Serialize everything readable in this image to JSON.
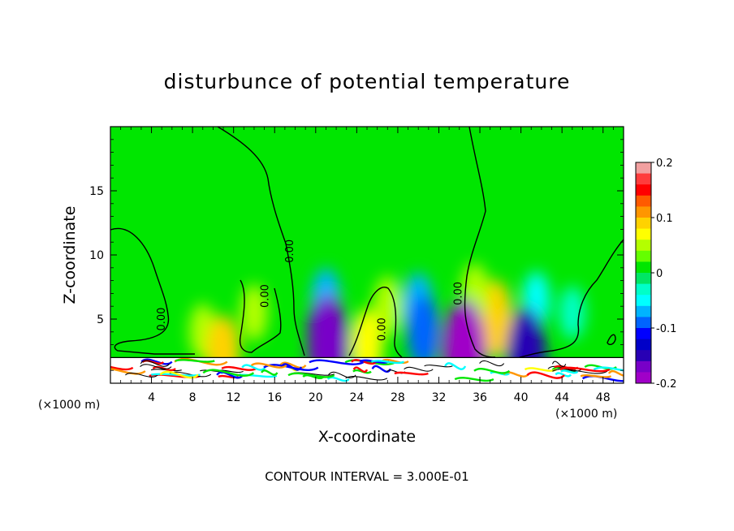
{
  "chart_data": {
    "type": "heatmap",
    "title": "disturbunce of potential temperature",
    "xlabel": "X-coordinate",
    "ylabel": "Z-coordinate",
    "x_unit_left": "(×1000 m)",
    "x_unit_right": "(×1000 m)",
    "xlim": [
      0,
      50
    ],
    "ylim": [
      0,
      20
    ],
    "x_ticks": [
      4,
      8,
      12,
      16,
      20,
      24,
      28,
      32,
      36,
      40,
      44,
      48
    ],
    "y_ticks": [
      5,
      10,
      15
    ],
    "colorbar": {
      "min": -0.2,
      "max": 0.2,
      "labels": [
        "0.2",
        "0.1",
        "0",
        "-0.1",
        "-0.2"
      ],
      "label_values": [
        0.2,
        0.1,
        0,
        -0.1,
        -0.2
      ],
      "colors": [
        "#f2a0a0",
        "#ff3c3c",
        "#ff0000",
        "#ff5a00",
        "#ff9600",
        "#ffd200",
        "#ffff00",
        "#b4ff00",
        "#64ff00",
        "#00e600",
        "#00e664",
        "#00ffc8",
        "#00ffff",
        "#00b4ff",
        "#0064ff",
        "#0000ff",
        "#0000c8",
        "#2800b4",
        "#7800c8",
        "#a000c8"
      ]
    },
    "background_color": "#00e600",
    "contour_labels": [
      {
        "text": "0.00",
        "x": 5.3,
        "z": 5.0
      },
      {
        "text": "0.00",
        "x": 15.4,
        "z": 6.8
      },
      {
        "text": "0.00",
        "x": 17.8,
        "z": 10.3
      },
      {
        "text": "0.00",
        "x": 26.8,
        "z": 4.2
      },
      {
        "text": "0.00",
        "x": 34.2,
        "z": 7.0
      }
    ],
    "anomalies": [
      {
        "x": 21.0,
        "z": 4.0,
        "value": -0.12
      },
      {
        "x": 21.0,
        "z": 6.5,
        "value": -0.06
      },
      {
        "x": 21.2,
        "z": 3.0,
        "value": -0.16
      },
      {
        "x": 30.0,
        "z": 6.0,
        "value": -0.07
      },
      {
        "x": 30.5,
        "z": 4.0,
        "value": -0.09
      },
      {
        "x": 25.0,
        "z": 3.0,
        "value": 0.08
      },
      {
        "x": 27.0,
        "z": 6.0,
        "value": 0.05
      },
      {
        "x": 37.5,
        "z": 5.0,
        "value": 0.1
      },
      {
        "x": 35.5,
        "z": 7.0,
        "value": 0.05
      },
      {
        "x": 41.5,
        "z": 6.5,
        "value": -0.04
      },
      {
        "x": 45.0,
        "z": 5.5,
        "value": -0.03
      },
      {
        "x": 9.0,
        "z": 4.0,
        "value": 0.04
      },
      {
        "x": 14.0,
        "z": 5.5,
        "value": 0.04
      },
      {
        "x": 11.0,
        "z": 2.4,
        "value": 0.09
      },
      {
        "x": 34.5,
        "z": 2.4,
        "value": -0.18
      },
      {
        "x": 40.5,
        "z": 2.2,
        "value": -0.15
      }
    ],
    "contour_interval_text": "CONTOUR INTERVAL = 3.000E-01"
  }
}
